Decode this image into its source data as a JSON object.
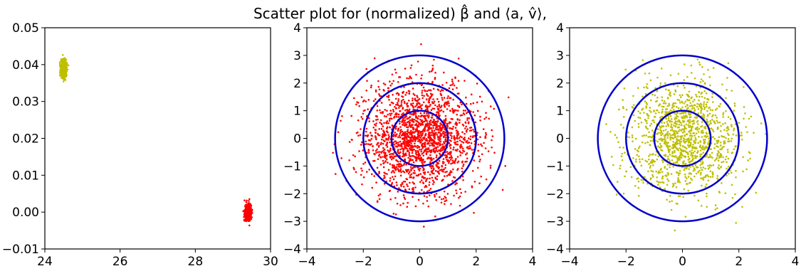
{
  "title": "Scatter plot for (normalized) β̂ and ⟨a, v̂⟩,",
  "colors": {
    "red": "#ff0000",
    "yellow": "#bfbf00",
    "circle": "#0000cc",
    "axis": "#000000"
  },
  "chart_data": [
    {
      "type": "scatter",
      "xlim": [
        24,
        30
      ],
      "ylim": [
        -0.01,
        0.05
      ],
      "xticks": [
        "24",
        "26",
        "28",
        "30"
      ],
      "yticks": [
        "−0.01",
        "0.00",
        "0.01",
        "0.02",
        "0.03",
        "0.04",
        "0.05"
      ],
      "xtick_values": [
        24,
        26,
        28,
        30
      ],
      "ytick_values": [
        -0.01,
        0,
        0.01,
        0.02,
        0.03,
        0.04,
        0.05
      ],
      "series": [
        {
          "color": "yellow",
          "center": [
            24.5,
            0.039
          ],
          "spread": [
            0.04,
            0.0012
          ],
          "count": 500
        },
        {
          "color": "red",
          "center": [
            29.4,
            0.0
          ],
          "spread": [
            0.04,
            0.0011
          ],
          "count": 500
        }
      ],
      "grid": false
    },
    {
      "type": "scatter",
      "xlim": [
        -4,
        4
      ],
      "ylim": [
        -4,
        4
      ],
      "xticks": [
        "−4",
        "−2",
        "0",
        "2",
        "4"
      ],
      "yticks": [
        "−4",
        "−3",
        "−2",
        "−1",
        "0",
        "1",
        "2",
        "3",
        "4"
      ],
      "xtick_values": [
        -4,
        -2,
        0,
        2,
        4
      ],
      "ytick_values": [
        -4,
        -3,
        -2,
        -1,
        0,
        1,
        2,
        3,
        4
      ],
      "series": [
        {
          "color": "red",
          "center": [
            0,
            0
          ],
          "spread": [
            1,
            1
          ],
          "count": 2000
        }
      ],
      "circles": [
        1,
        2,
        3
      ],
      "grid": false
    },
    {
      "type": "scatter",
      "xlim": [
        -4,
        4
      ],
      "ylim": [
        -4,
        4
      ],
      "xticks": [
        "−4",
        "−2",
        "0",
        "2",
        "4"
      ],
      "yticks": [
        "−4",
        "−3",
        "−2",
        "−1",
        "0",
        "1",
        "2",
        "3",
        "4"
      ],
      "xtick_values": [
        -4,
        -2,
        0,
        2,
        4
      ],
      "ytick_values": [
        -4,
        -3,
        -2,
        -1,
        0,
        1,
        2,
        3,
        4
      ],
      "series": [
        {
          "color": "yellow",
          "center": [
            0,
            0
          ],
          "spread": [
            1,
            1
          ],
          "count": 1300
        }
      ],
      "circles": [
        1,
        2,
        3
      ],
      "grid": false
    }
  ]
}
